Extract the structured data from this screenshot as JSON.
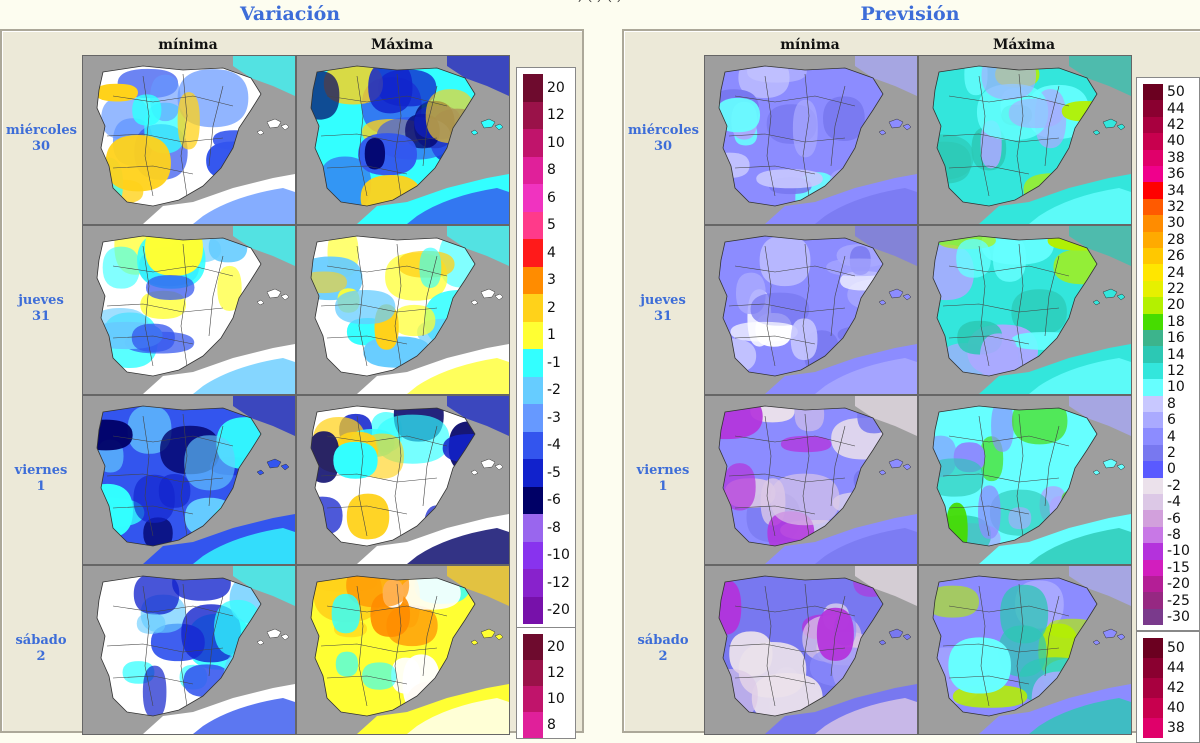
{
  "header": {
    "fragment": ", (   ) ( )"
  },
  "variacion": {
    "title": "Variación",
    "columns": [
      "mínima",
      "Máxima"
    ],
    "days": [
      {
        "name": "miércoles",
        "num": "30"
      },
      {
        "name": "jueves",
        "num": "31"
      },
      {
        "name": "viernes",
        "num": "1"
      },
      {
        "name": "sábado",
        "num": "2"
      }
    ],
    "legend": [
      {
        "v": "20",
        "c": "#6e0b2e"
      },
      {
        "v": "12",
        "c": "#9a1249"
      },
      {
        "v": "10",
        "c": "#c0146b"
      },
      {
        "v": "8",
        "c": "#e0209a"
      },
      {
        "v": "6",
        "c": "#f033c0"
      },
      {
        "v": "5",
        "c": "#ff3a8a"
      },
      {
        "v": "4",
        "c": "#ff1a1a"
      },
      {
        "v": "3",
        "c": "#ff8c00"
      },
      {
        "v": "2",
        "c": "#ffd21a"
      },
      {
        "v": "1",
        "c": "#ffff33"
      },
      {
        "v": "-1",
        "c": "#33ffff"
      },
      {
        "v": "-2",
        "c": "#66ccff"
      },
      {
        "v": "-3",
        "c": "#6699ff"
      },
      {
        "v": "-4",
        "c": "#3355ee"
      },
      {
        "v": "-5",
        "c": "#1122cc"
      },
      {
        "v": "-6",
        "c": "#000066"
      },
      {
        "v": "-8",
        "c": "#9966ee"
      },
      {
        "v": "-10",
        "c": "#8833ee"
      },
      {
        "v": "-12",
        "c": "#8822cc"
      },
      {
        "v": "-20",
        "c": "#7711aa"
      }
    ],
    "legend2": [
      {
        "v": "20",
        "c": "#6e0b2e"
      },
      {
        "v": "12",
        "c": "#9a1249"
      },
      {
        "v": "10",
        "c": "#c0146b"
      },
      {
        "v": "8",
        "c": "#e0209a"
      }
    ]
  },
  "prevision": {
    "title": "Previsión",
    "columns": [
      "mínima",
      "Máxima"
    ],
    "days": [
      {
        "name": "miércoles",
        "num": "30"
      },
      {
        "name": "jueves",
        "num": "31"
      },
      {
        "name": "viernes",
        "num": "1"
      },
      {
        "name": "sábado",
        "num": "2"
      }
    ],
    "legend": [
      {
        "v": "50",
        "c": "#6b0020"
      },
      {
        "v": "44",
        "c": "#8a0030"
      },
      {
        "v": "42",
        "c": "#a8003f"
      },
      {
        "v": "40",
        "c": "#c8004e"
      },
      {
        "v": "38",
        "c": "#e0006a"
      },
      {
        "v": "36",
        "c": "#f0008c"
      },
      {
        "v": "34",
        "c": "#ff0000"
      },
      {
        "v": "32",
        "c": "#ff5a00"
      },
      {
        "v": "30",
        "c": "#ff8c00"
      },
      {
        "v": "28",
        "c": "#ffaa00"
      },
      {
        "v": "26",
        "c": "#ffc800"
      },
      {
        "v": "24",
        "c": "#ffe600"
      },
      {
        "v": "22",
        "c": "#e6f000"
      },
      {
        "v": "20",
        "c": "#b4f000"
      },
      {
        "v": "18",
        "c": "#46dc00"
      },
      {
        "v": "16",
        "c": "#3cb48c"
      },
      {
        "v": "14",
        "c": "#2cc8b4"
      },
      {
        "v": "12",
        "c": "#33e6dc"
      },
      {
        "v": "10",
        "c": "#66ffff"
      },
      {
        "v": "8",
        "c": "#c8c8ff"
      },
      {
        "v": "6",
        "c": "#aaaaff"
      },
      {
        "v": "4",
        "c": "#8c8cff"
      },
      {
        "v": "2",
        "c": "#7878f0"
      },
      {
        "v": "0",
        "c": "#5a5aff"
      },
      {
        "v": "-2",
        "c": "#ebe1eb"
      },
      {
        "v": "-4",
        "c": "#dcc8e6"
      },
      {
        "v": "-6",
        "c": "#d2a0dc"
      },
      {
        "v": "-8",
        "c": "#c878e6"
      },
      {
        "v": "-10",
        "c": "#b432dc"
      },
      {
        "v": "-15",
        "c": "#d21ebe"
      },
      {
        "v": "-20",
        "c": "#b41e96"
      },
      {
        "v": "-25",
        "c": "#962882"
      },
      {
        "v": "-30",
        "c": "#7a3a8c"
      }
    ],
    "legend2": [
      {
        "v": "50",
        "c": "#6b0020"
      },
      {
        "v": "44",
        "c": "#8a0030"
      },
      {
        "v": "42",
        "c": "#a8003f"
      },
      {
        "v": "40",
        "c": "#c8004e"
      },
      {
        "v": "38",
        "c": "#e0006a"
      }
    ]
  },
  "map_colors": {
    "var_min": [
      {
        "base": "#ffffff",
        "fill1": "#33ffff",
        "fill2": "#6699ff",
        "fill3": "#ffd21a",
        "fill4": "#3355ee"
      },
      {
        "base": "#ffffff",
        "fill1": "#33ffff",
        "fill2": "#66ccff",
        "fill3": "#ffff33",
        "fill4": "#3355ee"
      },
      {
        "base": "#3355ee",
        "fill1": "#1122cc",
        "fill2": "#33ffff",
        "fill3": "#66ccff",
        "fill4": "#000066"
      },
      {
        "base": "#ffffff",
        "fill1": "#33ffff",
        "fill2": "#3355ee",
        "fill3": "#66ccff",
        "fill4": "#1122cc"
      }
    ],
    "var_max": [
      {
        "base": "#33ffff",
        "fill1": "#1122cc",
        "fill2": "#3355ee",
        "fill3": "#ffd21a",
        "fill4": "#000066"
      },
      {
        "base": "#ffffff",
        "fill1": "#33ffff",
        "fill2": "#ffff33",
        "fill3": "#ffd21a",
        "fill4": "#66ccff"
      },
      {
        "base": "#ffffff",
        "fill1": "#1122cc",
        "fill2": "#000066",
        "fill3": "#ffd21a",
        "fill4": "#33ffff"
      },
      {
        "base": "#ffff33",
        "fill1": "#ffd21a",
        "fill2": "#ffffff",
        "fill3": "#ff8c00",
        "fill4": "#33ffff"
      }
    ],
    "prev_min": [
      {
        "base": "#8c8cff",
        "fill1": "#aaaaff",
        "fill2": "#7878f0",
        "fill3": "#66ffff",
        "fill4": "#c8c8ff"
      },
      {
        "base": "#8c8cff",
        "fill1": "#7878f0",
        "fill2": "#aaaaff",
        "fill3": "#ffffff",
        "fill4": "#c8c8ff"
      },
      {
        "base": "#8c8cff",
        "fill1": "#ebe1eb",
        "fill2": "#7878f0",
        "fill3": "#dcc8e6",
        "fill4": "#b432dc"
      },
      {
        "base": "#7878f0",
        "fill1": "#ebe1eb",
        "fill2": "#dcc8e6",
        "fill3": "#8c8cff",
        "fill4": "#b432dc"
      }
    ],
    "prev_max": [
      {
        "base": "#33e6dc",
        "fill1": "#2cc8b4",
        "fill2": "#66ffff",
        "fill3": "#b4f000",
        "fill4": "#aaaaff"
      },
      {
        "base": "#33e6dc",
        "fill1": "#2cc8b4",
        "fill2": "#66ffff",
        "fill3": "#b4f000",
        "fill4": "#aaaaff"
      },
      {
        "base": "#66ffff",
        "fill1": "#aaaaff",
        "fill2": "#2cc8b4",
        "fill3": "#46dc00",
        "fill4": "#8c8cff"
      },
      {
        "base": "#8c8cff",
        "fill1": "#aaaaff",
        "fill2": "#2cc8b4",
        "fill3": "#b4f000",
        "fill4": "#66ffff"
      }
    ]
  }
}
